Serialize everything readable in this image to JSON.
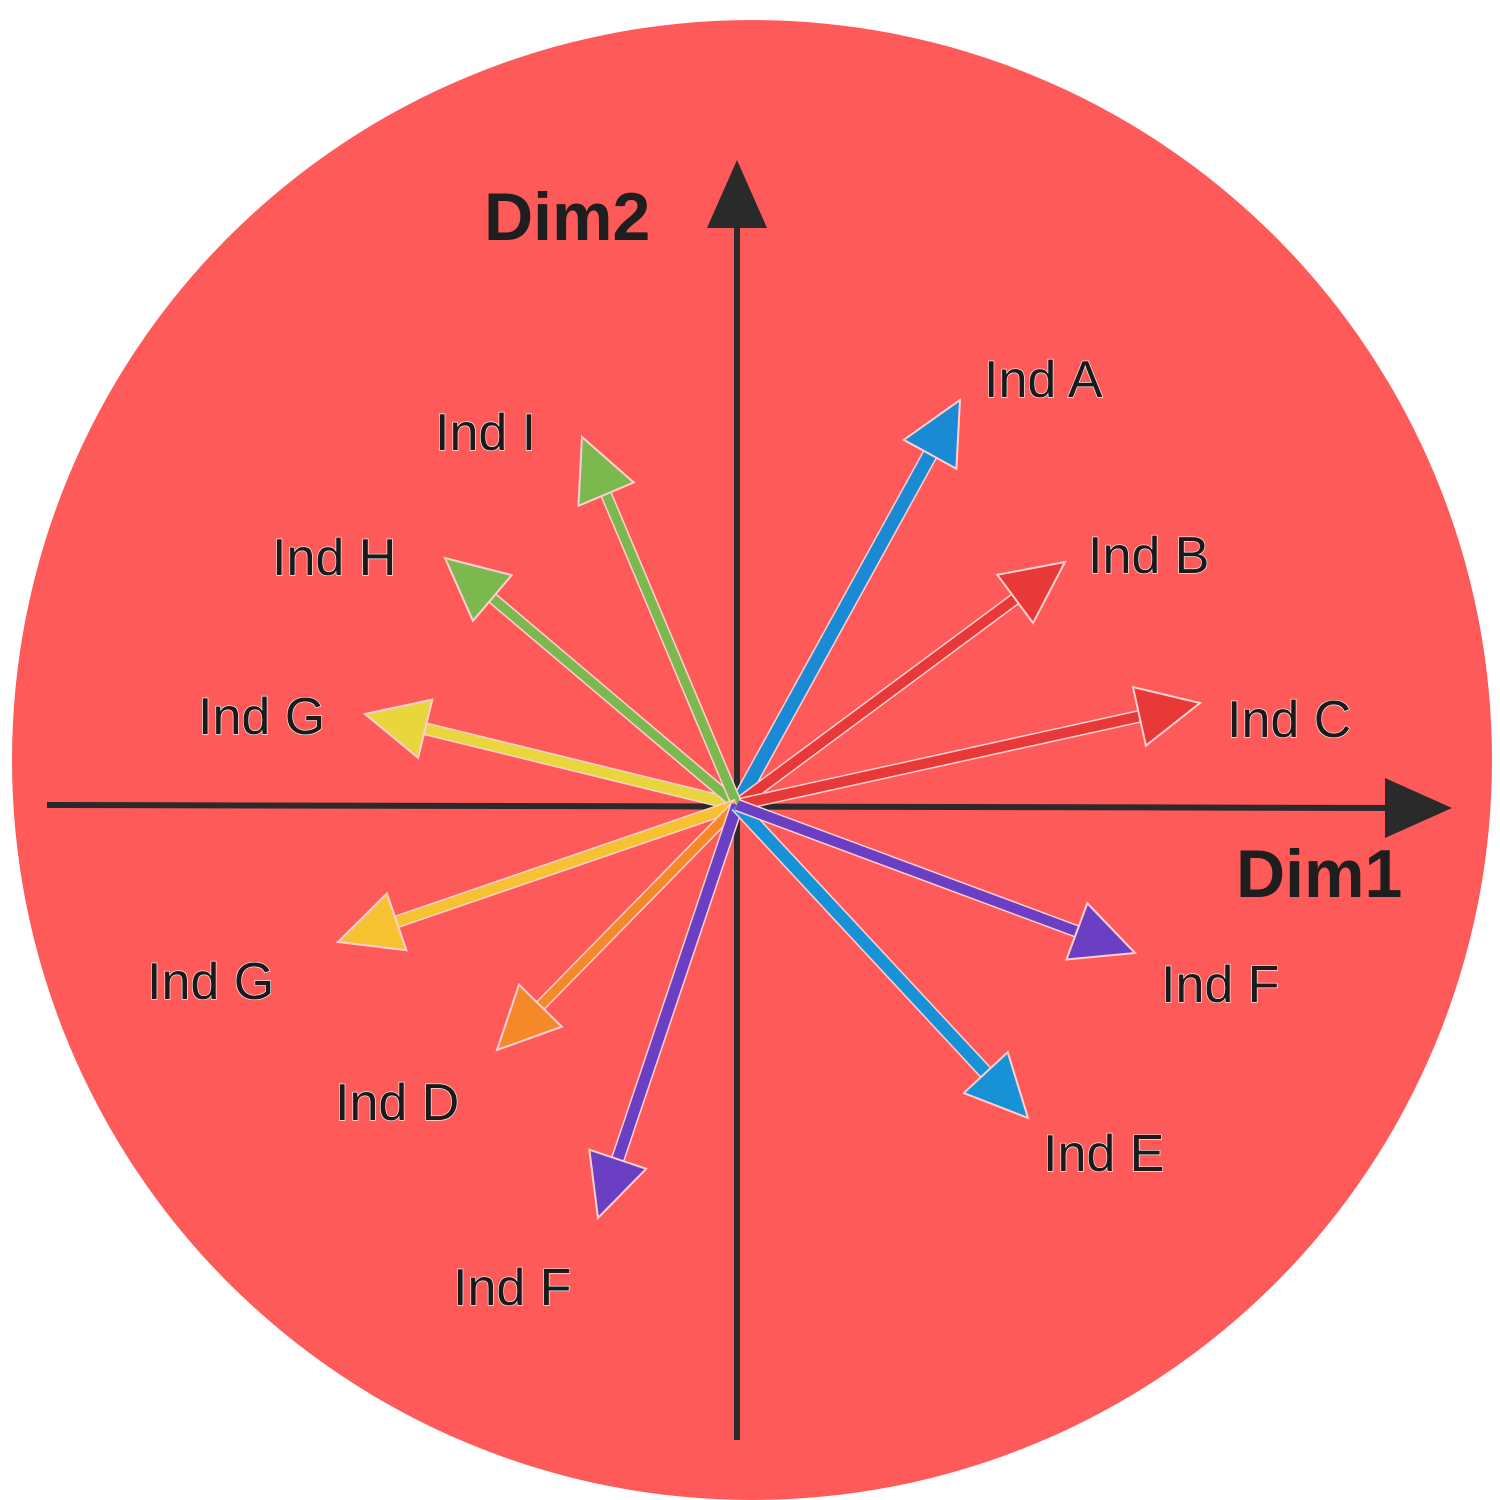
{
  "background_color": "#ff5a5a",
  "axes": {
    "x_label": "Dim1",
    "y_label": "Dim2",
    "color": "#2a2a2a"
  },
  "arrows": [
    {
      "label": "Ind A",
      "color": "#1a8ad4"
    },
    {
      "label": "Ind B",
      "color": "#e83838"
    },
    {
      "label": "Ind C",
      "color": "#e83838"
    },
    {
      "label": "Ind G",
      "color": "#e8d63c"
    },
    {
      "label": "Ind H",
      "color": "#7bb84e"
    },
    {
      "label": "Ind I",
      "color": "#7bb84e"
    },
    {
      "label": "Ind G",
      "color": "#f6c232"
    },
    {
      "label": "Ind D",
      "color": "#f5892a"
    },
    {
      "label": "Ind F",
      "color": "#6a3fc4"
    },
    {
      "label": "Ind E",
      "color": "#1892d6"
    },
    {
      "label": "Ind F",
      "color": "#6a3fc4"
    }
  ]
}
